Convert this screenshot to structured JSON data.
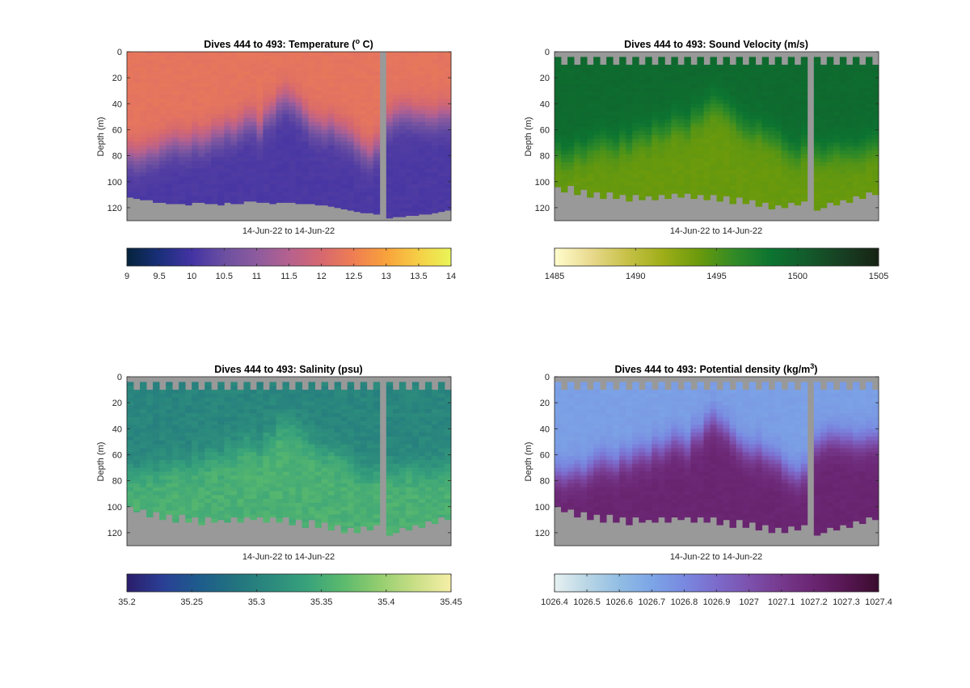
{
  "figure": {
    "background": "#ffffff",
    "axis_color": "#262626",
    "missing_color": "#999999"
  },
  "chart_data": [
    {
      "type": "heatmap",
      "title": "Dives 444 to 493: Temperature (",
      "title_super": "o",
      "title_suffix": " C)",
      "xlabel": "14-Jun-22 to 14-Jun-22",
      "ylabel": "Depth (m)",
      "y_ticks": [
        0,
        20,
        40,
        60,
        80,
        100,
        120
      ],
      "ylim": [
        0,
        130
      ],
      "y_reversed": true,
      "num_dives": 50,
      "gap_dive": 39,
      "seed": 1,
      "top_start": [
        0,
        0,
        0,
        0,
        0,
        0,
        0,
        0,
        0,
        0,
        0,
        0,
        0,
        0,
        0,
        0,
        0,
        0,
        0,
        0,
        0,
        0,
        0,
        0,
        0,
        0,
        0,
        0,
        0,
        0,
        0,
        0,
        0,
        0,
        0,
        0,
        0,
        0,
        0,
        0,
        0,
        0,
        0,
        0,
        0,
        0,
        0,
        0,
        0,
        0
      ],
      "bottom_depth": [
        112,
        113,
        114,
        114,
        116,
        116,
        117,
        117,
        117,
        118,
        116,
        116,
        117,
        117,
        118,
        116,
        117,
        117,
        115,
        115,
        116,
        116,
        117,
        116,
        116,
        116,
        117,
        117,
        117,
        118,
        118,
        119,
        120,
        121,
        122,
        123,
        124,
        124,
        125,
        126,
        128,
        127,
        127,
        126,
        126,
        125,
        125,
        124,
        123,
        122
      ],
      "interface_depth": [
        78,
        80,
        79,
        76,
        76,
        72,
        70,
        68,
        70,
        70,
        66,
        68,
        66,
        62,
        62,
        58,
        60,
        56,
        52,
        52,
        58,
        48,
        45,
        38,
        35,
        38,
        42,
        48,
        54,
        56,
        58,
        56,
        60,
        62,
        65,
        70,
        75,
        78,
        72,
        64,
        52,
        48,
        46,
        46,
        48,
        48,
        50,
        50,
        48,
        48
      ],
      "colormap": "thermal",
      "colorbar": {
        "ticks": [
          9,
          9.5,
          10,
          10.5,
          11,
          11.5,
          12,
          12.5,
          13,
          13.5,
          14
        ],
        "tick_labels": [
          "9",
          "9.5",
          "10",
          "10.5",
          "11",
          "11.5",
          "12",
          "12.5",
          "13",
          "13.5",
          "14"
        ],
        "range": [
          9,
          14
        ],
        "colors": [
          "#04233b",
          "#1a2f7a",
          "#4333a3",
          "#6b4fa1",
          "#8d5b9e",
          "#b5618f",
          "#d6686f",
          "#ef7e52",
          "#f8a23b",
          "#f6cf46",
          "#e9f558"
        ]
      },
      "value_top": 12.3,
      "value_bottom": 10.1,
      "noise": 0.05
    },
    {
      "type": "heatmap",
      "title": "Dives 444 to 493: Sound Velocity (m/s)",
      "xlabel": "14-Jun-22 to 14-Jun-22",
      "ylabel": "Depth (m)",
      "y_ticks": [
        0,
        20,
        40,
        60,
        80,
        100,
        120
      ],
      "ylim": [
        0,
        130
      ],
      "y_reversed": true,
      "num_dives": 50,
      "gap_dive": 39,
      "seed": 2,
      "top_start": [
        4,
        10,
        4,
        10,
        4,
        10,
        4,
        10,
        4,
        10,
        4,
        10,
        4,
        10,
        4,
        10,
        4,
        10,
        4,
        10,
        4,
        10,
        4,
        10,
        4,
        10,
        4,
        10,
        4,
        10,
        4,
        10,
        4,
        10,
        4,
        10,
        4,
        10,
        4,
        10,
        4,
        10,
        4,
        10,
        4,
        10,
        4,
        10,
        4,
        10
      ],
      "bottom_depth": [
        104,
        108,
        103,
        110,
        106,
        112,
        108,
        113,
        108,
        113,
        110,
        115,
        110,
        114,
        111,
        114,
        110,
        113,
        109,
        112,
        109,
        113,
        110,
        114,
        110,
        115,
        111,
        117,
        112,
        117,
        114,
        119,
        116,
        121,
        118,
        120,
        116,
        118,
        115,
        120,
        122,
        120,
        116,
        118,
        114,
        116,
        111,
        113,
        108,
        110
      ],
      "interface_depth": [
        76,
        80,
        79,
        74,
        76,
        72,
        70,
        68,
        70,
        72,
        66,
        70,
        64,
        62,
        64,
        58,
        60,
        58,
        52,
        54,
        56,
        48,
        48,
        42,
        38,
        40,
        44,
        48,
        54,
        58,
        60,
        58,
        62,
        64,
        66,
        72,
        76,
        78,
        72,
        66,
        76,
        78,
        76,
        74,
        76,
        75,
        76,
        75,
        72,
        70
      ],
      "colormap": "speed",
      "colorbar": {
        "ticks": [
          1485,
          1490,
          1495,
          1500,
          1505
        ],
        "tick_labels": [
          "1485",
          "1490",
          "1495",
          "1500",
          "1505"
        ],
        "range": [
          1485,
          1505
        ],
        "colors": [
          "#fffdcd",
          "#e9da8f",
          "#c7c148",
          "#9fae19",
          "#6b9a0c",
          "#318a26",
          "#0c7431",
          "#135b2b",
          "#173f22",
          "#172313"
        ]
      },
      "value_top": 1499.2,
      "value_bottom": 1494.0,
      "noise": 0.18
    },
    {
      "type": "heatmap",
      "title": "Dives 444 to 493: Salinity (psu)",
      "xlabel": "14-Jun-22 to 14-Jun-22",
      "ylabel": "Depth (m)",
      "y_ticks": [
        0,
        20,
        40,
        60,
        80,
        100,
        120
      ],
      "ylim": [
        0,
        130
      ],
      "y_reversed": true,
      "num_dives": 50,
      "gap_dive": 39,
      "seed": 3,
      "top_start": [
        4,
        10,
        4,
        10,
        4,
        10,
        4,
        10,
        4,
        10,
        4,
        10,
        4,
        10,
        4,
        10,
        4,
        10,
        4,
        10,
        4,
        10,
        4,
        10,
        4,
        10,
        4,
        10,
        4,
        10,
        4,
        10,
        4,
        10,
        4,
        10,
        4,
        10,
        4,
        10,
        4,
        10,
        4,
        10,
        4,
        10,
        4,
        10,
        4,
        10
      ],
      "bottom_depth": [
        100,
        104,
        102,
        108,
        104,
        110,
        106,
        112,
        106,
        112,
        108,
        114,
        108,
        112,
        110,
        112,
        108,
        112,
        108,
        110,
        108,
        112,
        108,
        112,
        108,
        114,
        110,
        116,
        110,
        116,
        112,
        118,
        114,
        120,
        116,
        120,
        115,
        118,
        114,
        120,
        122,
        120,
        116,
        118,
        114,
        116,
        111,
        113,
        108,
        110
      ],
      "interface_depth": [
        72,
        74,
        72,
        70,
        72,
        68,
        66,
        64,
        66,
        68,
        62,
        64,
        60,
        58,
        60,
        54,
        56,
        52,
        48,
        50,
        54,
        44,
        44,
        36,
        34,
        36,
        40,
        44,
        50,
        54,
        56,
        54,
        58,
        60,
        62,
        68,
        72,
        74,
        70,
        62,
        70,
        72,
        70,
        68,
        70,
        70,
        72,
        70,
        68,
        66
      ],
      "colormap": "viridis",
      "colorbar": {
        "ticks": [
          35.2,
          35.25,
          35.3,
          35.35,
          35.4,
          35.45
        ],
        "tick_labels": [
          "35.2",
          "35.25",
          "35.3",
          "35.35",
          "35.4",
          "35.45"
        ],
        "range": [
          35.2,
          35.45
        ],
        "colors": [
          "#2a1d6b",
          "#2a3f95",
          "#1d5c8c",
          "#22737f",
          "#2b8a7d",
          "#38a27b",
          "#5bba6d",
          "#93cd6f",
          "#c9df86",
          "#f6efa6"
        ]
      },
      "value_top": 35.305,
      "value_bottom": 35.355,
      "noise": 0.008
    },
    {
      "type": "heatmap",
      "title": "Dives 444 to 493: Potential density (kg/m",
      "title_super": "3",
      "title_suffix": ")",
      "xlabel": "14-Jun-22 to 14-Jun-22",
      "ylabel": "Depth (m)",
      "y_ticks": [
        0,
        20,
        40,
        60,
        80,
        100,
        120
      ],
      "ylim": [
        0,
        130
      ],
      "y_reversed": true,
      "num_dives": 50,
      "gap_dive": 39,
      "seed": 4,
      "top_start": [
        4,
        10,
        4,
        10,
        4,
        10,
        4,
        10,
        4,
        10,
        4,
        10,
        4,
        10,
        4,
        10,
        4,
        10,
        4,
        10,
        4,
        10,
        4,
        10,
        4,
        10,
        4,
        10,
        4,
        10,
        4,
        10,
        4,
        10,
        4,
        10,
        4,
        10,
        4,
        10,
        4,
        10,
        4,
        10,
        4,
        10,
        4,
        10,
        4,
        10
      ],
      "bottom_depth": [
        100,
        104,
        102,
        108,
        104,
        110,
        106,
        112,
        106,
        112,
        108,
        114,
        108,
        112,
        110,
        112,
        108,
        112,
        108,
        110,
        108,
        112,
        108,
        112,
        108,
        114,
        110,
        116,
        110,
        116,
        112,
        118,
        114,
        120,
        116,
        120,
        115,
        118,
        114,
        120,
        122,
        120,
        116,
        118,
        114,
        116,
        111,
        113,
        108,
        110
      ],
      "interface_depth": [
        74,
        76,
        74,
        72,
        74,
        70,
        66,
        64,
        66,
        68,
        62,
        64,
        60,
        58,
        60,
        54,
        56,
        52,
        48,
        50,
        54,
        44,
        44,
        36,
        32,
        36,
        40,
        46,
        52,
        56,
        58,
        56,
        60,
        62,
        64,
        70,
        74,
        76,
        72,
        64,
        52,
        48,
        46,
        46,
        48,
        48,
        50,
        50,
        48,
        48
      ],
      "colormap": "dense",
      "colorbar": {
        "ticks": [
          1026.4,
          1026.5,
          1026.6,
          1026.7,
          1026.8,
          1026.9,
          1027,
          1027.1,
          1027.2,
          1027.3,
          1027.4
        ],
        "tick_labels": [
          "1026.4",
          "1026.5",
          "1026.6",
          "1026.7",
          "1026.8",
          "1026.9",
          "1027",
          "1027.1",
          "1027.2",
          "1027.3",
          "1027.4"
        ],
        "range": [
          1026.4,
          1027.4
        ],
        "colors": [
          "#e6f1f1",
          "#b9d6e5",
          "#91bde4",
          "#7ca5e6",
          "#7989e0",
          "#7c6bcb",
          "#7c51ad",
          "#76398d",
          "#6a2571",
          "#561652",
          "#3a0c2d"
        ]
      },
      "value_top": 1026.72,
      "value_bottom": 1027.2,
      "noise": 0.012
    }
  ]
}
